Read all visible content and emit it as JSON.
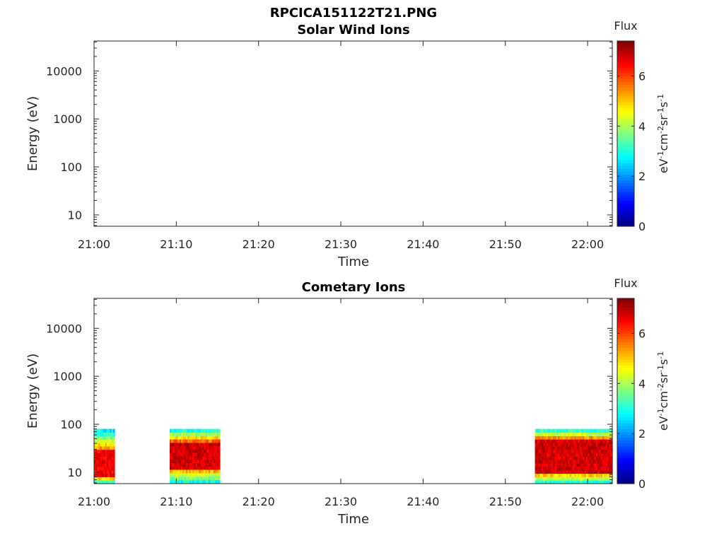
{
  "figure_title": "RPCICA151122T21.PNG",
  "chart_data": [
    {
      "type": "heatmap",
      "title": "Solar Wind Ions",
      "xlabel": "Time",
      "ylabel": "Energy (eV)",
      "x_ticks": [
        "21:00",
        "21:10",
        "21:20",
        "21:30",
        "21:40",
        "21:50",
        "22:00"
      ],
      "x_range_minutes": [
        0,
        63
      ],
      "y_scale": "log",
      "y_ticks": [
        "10",
        "100",
        "1000",
        "10000"
      ],
      "y_range": [
        5.8,
        42000
      ],
      "colorbar": {
        "label": "Flux",
        "units": "eV-1cm-2sr-1s-1",
        "ticks": [
          "0",
          "2",
          "4",
          "6"
        ],
        "range": [
          0,
          7.4
        ],
        "colormap": "jet"
      },
      "data_blocks": []
    },
    {
      "type": "heatmap",
      "title": "Cometary Ions",
      "xlabel": "Time",
      "ylabel": "Energy (eV)",
      "x_ticks": [
        "21:00",
        "21:10",
        "21:20",
        "21:30",
        "21:40",
        "21:50",
        "22:00"
      ],
      "x_range_minutes": [
        0,
        63
      ],
      "y_scale": "log",
      "y_ticks": [
        "10",
        "100",
        "1000",
        "10000"
      ],
      "y_range": [
        5.8,
        42000
      ],
      "colorbar": {
        "label": "Flux",
        "units": "eV-1cm-2sr-1s-1",
        "ticks": [
          "0",
          "2",
          "4",
          "6"
        ],
        "range": [
          0,
          7.4
        ],
        "colormap": "jet"
      },
      "data_blocks": [
        {
          "t_start": 0.0,
          "t_end": 2.5,
          "e_min": 5.8,
          "e_max": 80,
          "peak_flux": 7.0,
          "core_e_min": 8,
          "core_e_max": 30
        },
        {
          "t_start": 9.2,
          "t_end": 15.3,
          "e_min": 6,
          "e_max": 80,
          "peak_flux": 7.2,
          "core_e_min": 12,
          "core_e_max": 45
        },
        {
          "t_start": 53.6,
          "t_end": 63.0,
          "e_min": 5.8,
          "e_max": 80,
          "peak_flux": 7.2,
          "core_e_min": 10,
          "core_e_max": 50
        }
      ]
    }
  ]
}
